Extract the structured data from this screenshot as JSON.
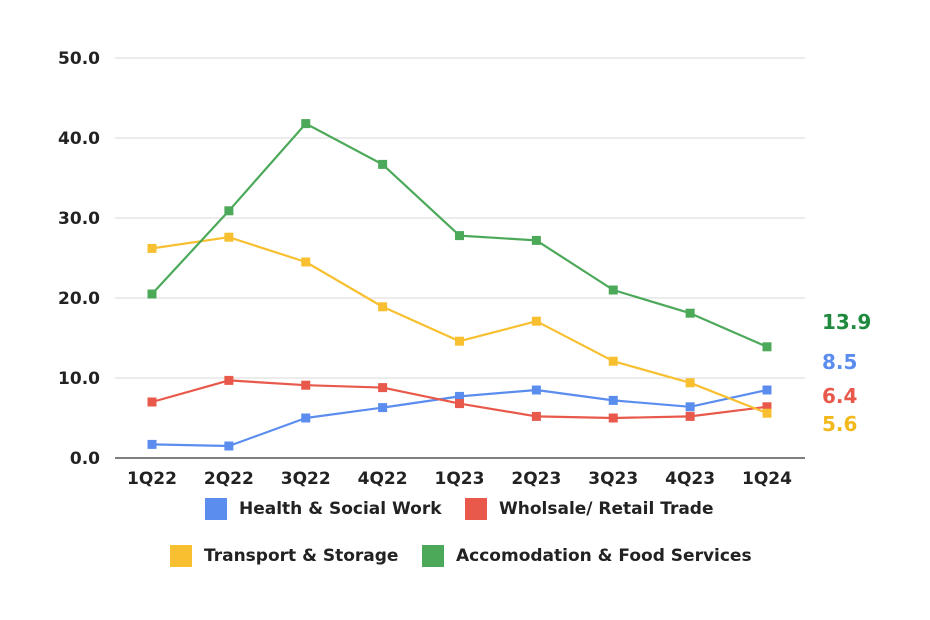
{
  "chart_data": {
    "type": "line",
    "title": "",
    "xlabel": "",
    "ylabel": "",
    "ylim": [
      0,
      50
    ],
    "yticks": [
      "0.0",
      "10.0",
      "20.0",
      "30.0",
      "40.0",
      "50.0"
    ],
    "grid": true,
    "categories": [
      "1Q22",
      "2Q22",
      "3Q22",
      "4Q22",
      "1Q23",
      "2Q23",
      "3Q23",
      "4Q23",
      "1Q24"
    ],
    "series": [
      {
        "name": "Health & Social Work",
        "color": "#5B8DEF",
        "values": [
          1.7,
          1.5,
          5.0,
          6.3,
          7.7,
          8.5,
          7.2,
          6.4,
          8.5
        ],
        "end_label": "8.5"
      },
      {
        "name": "Wholsale/ Retail Trade",
        "color": "#E8584B",
        "values": [
          7.0,
          9.7,
          9.1,
          8.8,
          6.8,
          5.2,
          5.0,
          5.2,
          6.4
        ],
        "end_label": "6.4"
      },
      {
        "name": "Transport & Storage",
        "color": "#F8C030",
        "values": [
          26.2,
          27.6,
          24.5,
          18.9,
          14.6,
          17.1,
          12.1,
          9.4,
          5.6
        ],
        "end_label": "5.6"
      },
      {
        "name": "Accomodation & Food Services",
        "color": "#4CA95A",
        "values": [
          20.5,
          30.9,
          41.8,
          36.7,
          27.8,
          27.2,
          21.0,
          18.1,
          13.9
        ],
        "end_label": "13.9"
      }
    ],
    "end_label_colors": [
      "#5B8DEF",
      "#E8584B",
      "#F2B81C",
      "#1F8A3E"
    ],
    "legend": "bottom"
  }
}
